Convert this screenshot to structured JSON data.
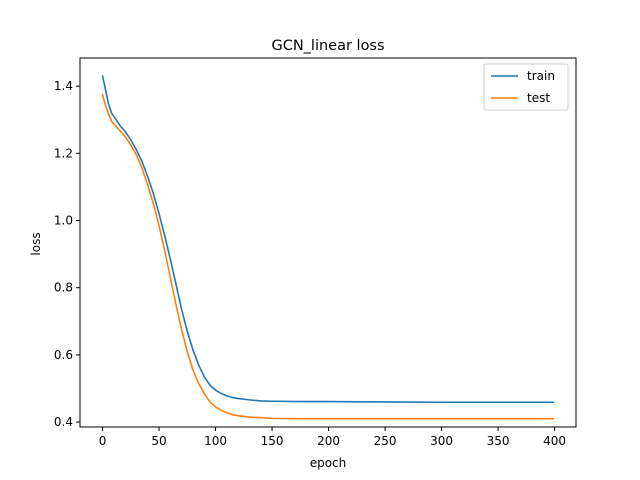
{
  "chart_data": {
    "type": "line",
    "title": "GCN_linear loss",
    "xlabel": "epoch",
    "ylabel": "loss",
    "xlim": [
      -19.95,
      418.95
    ],
    "ylim": [
      0.3853,
      1.4838
    ],
    "xticks": [
      0,
      50,
      100,
      150,
      200,
      250,
      300,
      350,
      400
    ],
    "yticks": [
      0.4,
      0.6,
      0.8,
      1.0,
      1.2,
      1.4
    ],
    "grid": false,
    "legend": "upper-right",
    "series": [
      {
        "name": "train",
        "color": "#1f77b4",
        "x": [
          0,
          2,
          5,
          8,
          12,
          16,
          20,
          25,
          30,
          35,
          40,
          45,
          50,
          55,
          60,
          65,
          70,
          75,
          80,
          85,
          90,
          95,
          100,
          105,
          110,
          115,
          120,
          130,
          140,
          150,
          175,
          200,
          250,
          300,
          350,
          399
        ],
        "values": [
          1.43,
          1.4,
          1.35,
          1.32,
          1.3,
          1.28,
          1.265,
          1.24,
          1.21,
          1.175,
          1.13,
          1.08,
          1.02,
          0.955,
          0.885,
          0.81,
          0.735,
          0.67,
          0.615,
          0.57,
          0.535,
          0.51,
          0.495,
          0.485,
          0.478,
          0.473,
          0.47,
          0.466,
          0.463,
          0.462,
          0.461,
          0.461,
          0.46,
          0.459,
          0.459,
          0.459
        ]
      },
      {
        "name": "test",
        "color": "#ff7f0e",
        "x": [
          0,
          2,
          5,
          8,
          12,
          16,
          20,
          25,
          30,
          35,
          40,
          45,
          50,
          55,
          60,
          65,
          70,
          75,
          80,
          85,
          90,
          95,
          100,
          105,
          110,
          115,
          120,
          130,
          140,
          150,
          175,
          200,
          250,
          300,
          350,
          399
        ],
        "values": [
          1.375,
          1.35,
          1.32,
          1.295,
          1.28,
          1.265,
          1.25,
          1.225,
          1.195,
          1.155,
          1.105,
          1.05,
          0.985,
          0.91,
          0.83,
          0.75,
          0.675,
          0.61,
          0.555,
          0.515,
          0.485,
          0.46,
          0.445,
          0.435,
          0.428,
          0.422,
          0.419,
          0.415,
          0.413,
          0.411,
          0.41,
          0.41,
          0.41,
          0.41,
          0.41,
          0.41
        ]
      }
    ]
  }
}
